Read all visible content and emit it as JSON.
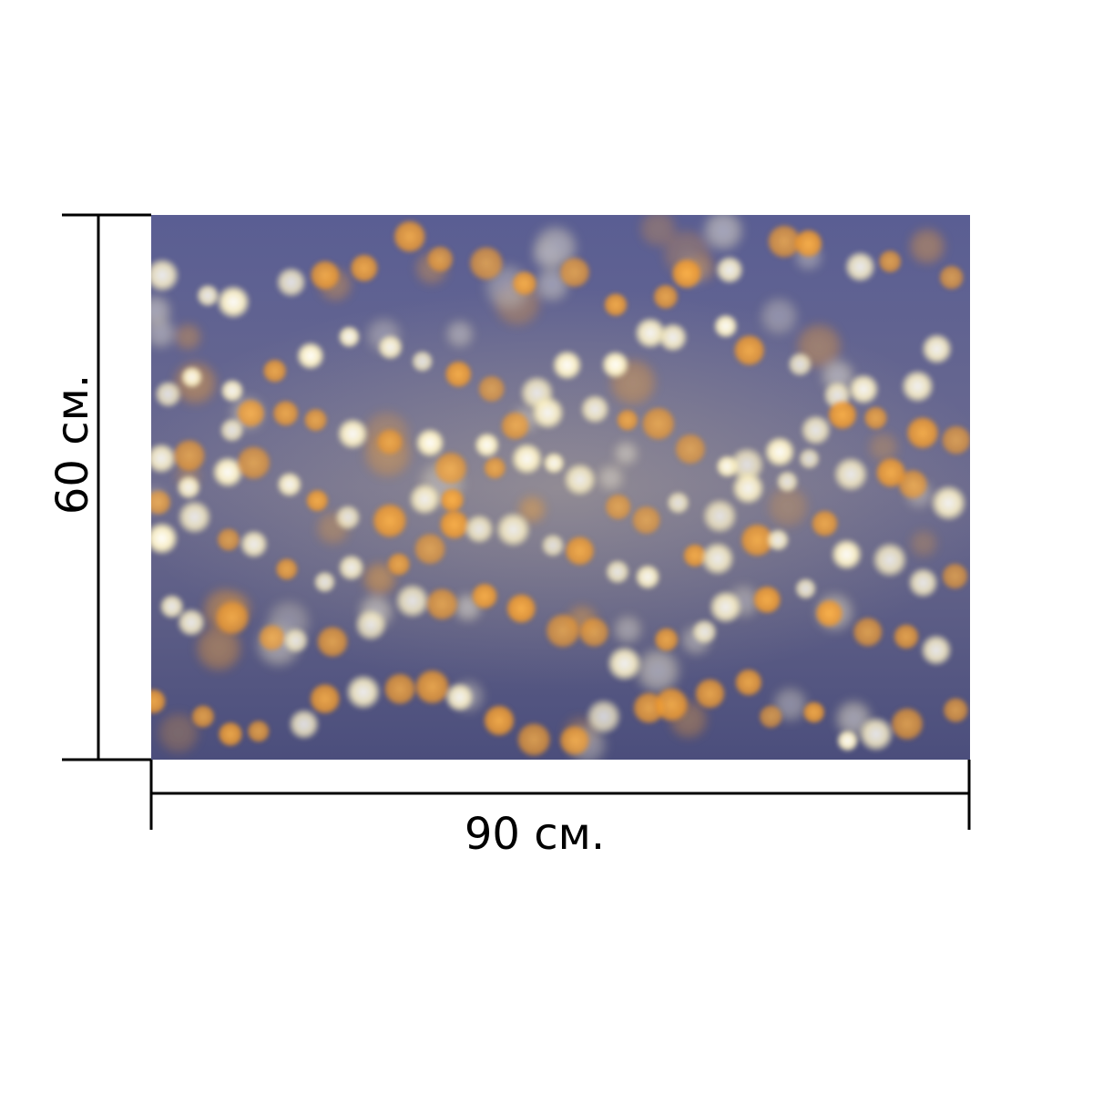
{
  "product": {
    "photo_subject": "bokeh-lights-photo",
    "width_label": "90 см.",
    "height_label": "60 см.",
    "colors": {
      "background_top": "#5a5f8f",
      "background_bottom": "#4a4d79",
      "warm_light": "#f0a33a",
      "cool_light": "#fff6cf",
      "dimension_line": "#000000"
    }
  }
}
